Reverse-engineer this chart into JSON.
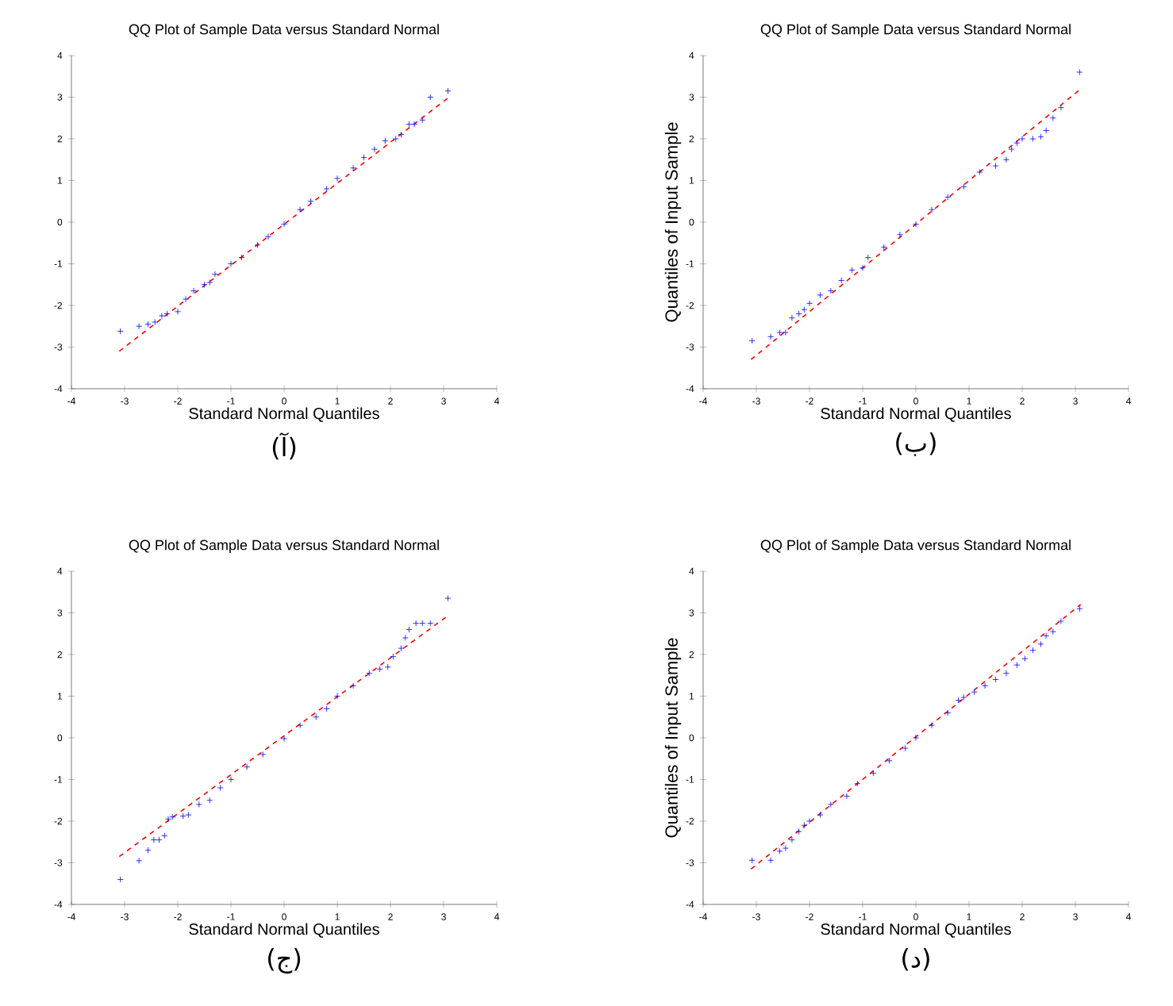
{
  "chart_data": [
    {
      "type": "scatter",
      "title": "QQ Plot of Sample Data versus Standard Normal",
      "xlabel": "Standard Normal Quantiles",
      "annotations": [
        "(آ)"
      ],
      "xlim": [
        -4,
        4
      ],
      "ylim": [
        -4,
        4
      ],
      "xticks": [
        -4,
        -3,
        -2,
        -1,
        0,
        1,
        2,
        3,
        4
      ],
      "yticks": [
        -4,
        -3,
        -2,
        -1,
        0,
        1,
        2,
        3,
        4
      ],
      "series": [
        {
          "marker": "cross",
          "color": "#0000ff",
          "x": [
            -3.08,
            -2.73,
            -2.56,
            -2.43,
            -2.3,
            -2.2,
            -2.0,
            -1.85,
            -1.7,
            -1.5,
            -1.4,
            -1.3,
            -1.0,
            -0.8,
            -0.5,
            -0.3,
            0,
            0.3,
            0.5,
            0.8,
            1.0,
            1.3,
            1.5,
            1.7,
            1.9,
            2.1,
            2.2,
            2.35,
            2.45,
            2.6,
            2.75,
            3.08
          ],
          "values": [
            -2.62,
            -2.5,
            -2.45,
            -2.4,
            -2.25,
            -2.2,
            -2.15,
            -1.85,
            -1.65,
            -1.5,
            -1.45,
            -1.25,
            -1.0,
            -0.85,
            -0.55,
            -0.35,
            -0.05,
            0.3,
            0.5,
            0.8,
            1.05,
            1.3,
            1.55,
            1.75,
            1.95,
            2.0,
            2.1,
            2.35,
            2.35,
            2.45,
            3.0,
            3.15
          ]
        },
        {
          "type": "line",
          "color": "#ff0000",
          "line_style": "dashed",
          "x": [
            -3.1,
            3.1
          ],
          "values": [
            -3.1,
            3.0
          ]
        }
      ]
    },
    {
      "type": "scatter",
      "title": "QQ Plot of Sample Data versus Standard Normal",
      "xlabel": "Standard Normal Quantiles",
      "ylabel": "Quantiles of Input Sample",
      "annotations": [
        "(ب)"
      ],
      "xlim": [
        -4,
        4
      ],
      "ylim": [
        -4,
        4
      ],
      "xticks": [
        -4,
        -3,
        -2,
        -1,
        0,
        1,
        2,
        3,
        4
      ],
      "yticks": [
        -4,
        -3,
        -2,
        -1,
        0,
        1,
        2,
        3,
        4
      ],
      "series": [
        {
          "marker": "cross",
          "color": "#0000ff",
          "x": [
            -3.08,
            -2.73,
            -2.56,
            -2.45,
            -2.33,
            -2.2,
            -2.1,
            -2.0,
            -1.8,
            -1.6,
            -1.4,
            -1.2,
            -1.0,
            -0.9,
            -0.6,
            -0.3,
            0,
            0.3,
            0.6,
            0.9,
            1.2,
            1.5,
            1.7,
            1.8,
            1.9,
            2.0,
            2.2,
            2.35,
            2.45,
            2.58,
            2.73,
            3.08
          ],
          "values": [
            -2.85,
            -2.75,
            -2.65,
            -2.65,
            -2.3,
            -2.2,
            -2.1,
            -1.95,
            -1.75,
            -1.65,
            -1.4,
            -1.15,
            -1.1,
            -0.85,
            -0.6,
            -0.3,
            -0.05,
            0.3,
            0.6,
            0.85,
            1.2,
            1.35,
            1.5,
            1.75,
            1.9,
            2.0,
            2.0,
            2.05,
            2.2,
            2.5,
            2.75,
            3.6
          ]
        },
        {
          "type": "line",
          "color": "#ff0000",
          "line_style": "dashed",
          "x": [
            -3.1,
            3.1
          ],
          "values": [
            -3.3,
            3.2
          ]
        }
      ]
    },
    {
      "type": "scatter",
      "title": "QQ Plot of Sample Data versus Standard Normal",
      "xlabel": "Standard Normal Quantiles",
      "annotations": [
        "(ج)"
      ],
      "xlim": [
        -4,
        4
      ],
      "ylim": [
        -4,
        4
      ],
      "xticks": [
        -4,
        -3,
        -2,
        -1,
        0,
        1,
        2,
        3,
        4
      ],
      "yticks": [
        -4,
        -3,
        -2,
        -1,
        0,
        1,
        2,
        3,
        4
      ],
      "series": [
        {
          "marker": "cross",
          "color": "#0000ff",
          "x": [
            -3.08,
            -2.73,
            -2.56,
            -2.45,
            -2.35,
            -2.25,
            -2.18,
            -2.1,
            -1.9,
            -1.8,
            -1.6,
            -1.4,
            -1.2,
            -1.0,
            -0.7,
            -0.4,
            0,
            0.3,
            0.6,
            0.8,
            1.0,
            1.3,
            1.6,
            1.8,
            1.95,
            2.05,
            2.2,
            2.28,
            2.35,
            2.48,
            2.6,
            2.75,
            3.08
          ],
          "values": [
            -3.4,
            -2.95,
            -2.7,
            -2.45,
            -2.45,
            -2.35,
            -1.95,
            -1.9,
            -1.88,
            -1.85,
            -1.6,
            -1.5,
            -1.2,
            -1.0,
            -0.7,
            -0.4,
            -0.02,
            0.3,
            0.5,
            0.7,
            1.0,
            1.25,
            1.55,
            1.65,
            1.7,
            1.95,
            2.15,
            2.4,
            2.6,
            2.75,
            2.75,
            2.75,
            3.35
          ]
        },
        {
          "type": "line",
          "color": "#ff0000",
          "line_style": "dashed",
          "x": [
            -3.1,
            3.1
          ],
          "values": [
            -2.85,
            2.95
          ]
        }
      ]
    },
    {
      "type": "scatter",
      "title": "QQ Plot of Sample Data versus Standard Normal",
      "xlabel": "Standard Normal Quantiles",
      "ylabel": "Quantiles of Input Sample",
      "annotations": [
        "(د)"
      ],
      "xlim": [
        -4,
        4
      ],
      "ylim": [
        -4,
        4
      ],
      "xticks": [
        -4,
        -3,
        -2,
        -1,
        0,
        1,
        2,
        3,
        4
      ],
      "yticks": [
        -4,
        -3,
        -2,
        -1,
        0,
        1,
        2,
        3,
        4
      ],
      "series": [
        {
          "marker": "cross",
          "color": "#0000ff",
          "x": [
            -3.08,
            -2.73,
            -2.56,
            -2.45,
            -2.33,
            -2.2,
            -2.1,
            -2.0,
            -1.8,
            -1.6,
            -1.3,
            -1.1,
            -0.8,
            -0.5,
            -0.2,
            0,
            0.3,
            0.6,
            0.8,
            0.9,
            1.1,
            1.3,
            1.5,
            1.7,
            1.9,
            2.05,
            2.2,
            2.35,
            2.45,
            2.58,
            2.73,
            3.08
          ],
          "values": [
            -2.94,
            -2.94,
            -2.72,
            -2.65,
            -2.45,
            -2.25,
            -2.1,
            -2.0,
            -1.85,
            -1.6,
            -1.4,
            -1.1,
            -0.85,
            -0.55,
            -0.25,
            0,
            0.3,
            0.6,
            0.9,
            0.97,
            1.1,
            1.25,
            1.4,
            1.55,
            1.75,
            1.9,
            2.1,
            2.25,
            2.45,
            2.55,
            2.8,
            3.1
          ]
        },
        {
          "type": "line",
          "color": "#ff0000",
          "line_style": "dashed",
          "x": [
            -3.1,
            3.1
          ],
          "values": [
            -3.15,
            3.2
          ]
        }
      ]
    }
  ]
}
